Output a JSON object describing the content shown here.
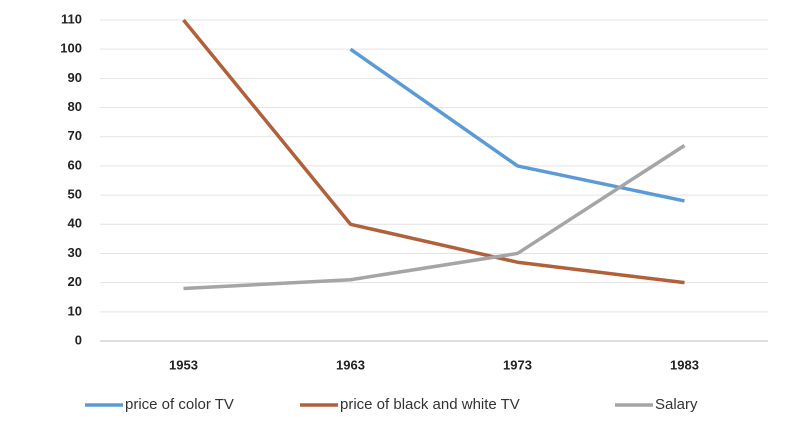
{
  "chart_data": {
    "type": "line",
    "categories": [
      "1953",
      "1963",
      "1973",
      "1983"
    ],
    "series": [
      {
        "name": "price of color TV",
        "color": "#5b9bd5",
        "values": [
          null,
          100,
          60,
          48
        ]
      },
      {
        "name": "price of black and white TV",
        "color": "#b0603a",
        "values": [
          110,
          40,
          27,
          20
        ]
      },
      {
        "name": "Salary",
        "color": "#a5a5a5",
        "values": [
          18,
          21,
          30,
          67
        ]
      }
    ],
    "ylim": [
      0,
      110
    ],
    "yticks": [
      0,
      10,
      20,
      30,
      40,
      50,
      60,
      70,
      80,
      90,
      100,
      110
    ],
    "grid": true,
    "legend": "bottom"
  }
}
